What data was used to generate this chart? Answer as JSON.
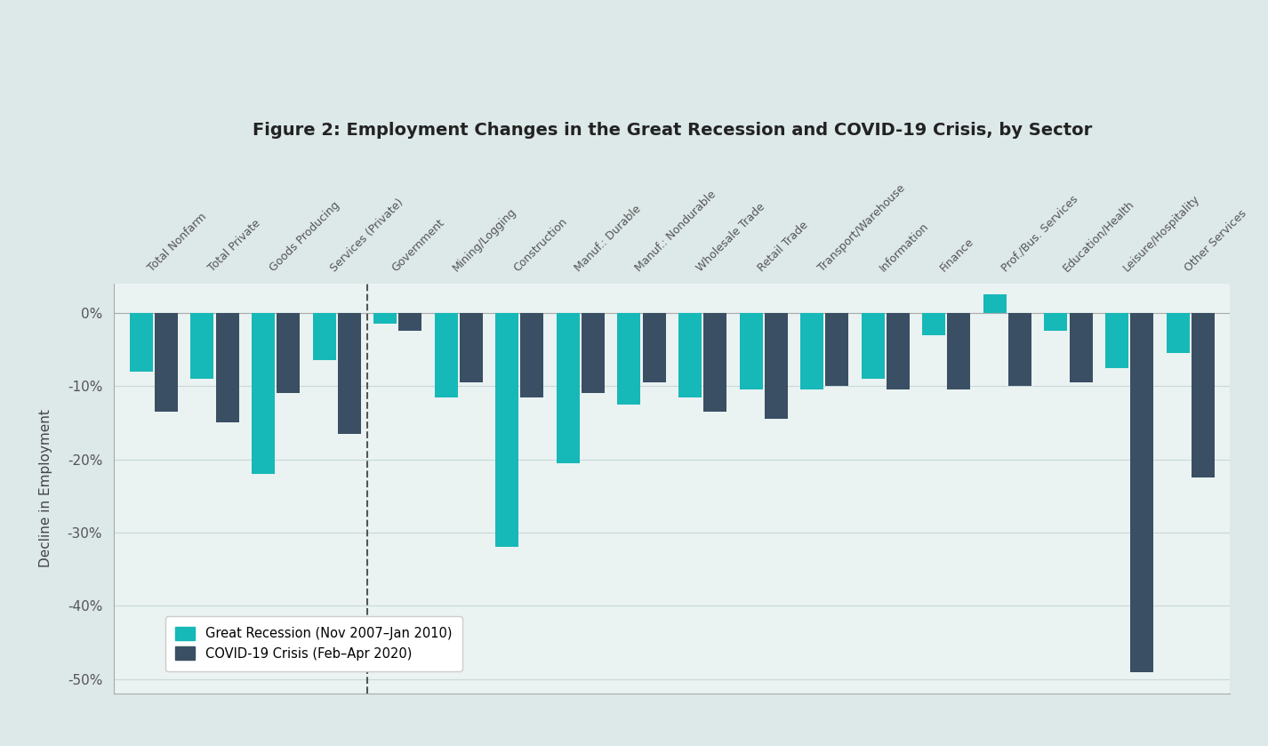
{
  "title": "Figure 2: Employment Changes in the Great Recession and COVID-19 Crisis, by Sector",
  "ylabel": "Decline in Employment",
  "fig_bg_color": "#dde8e8",
  "plot_bg_color": "#eaf2f2",
  "recession_color": "#17b8b8",
  "covid_color": "#3a4f63",
  "categories": [
    "Total Nonfarm",
    "Total Private",
    "Goods Producing",
    "Services (Private)",
    "Government",
    "Mining/Logging",
    "Construction",
    "Manuf.: Durable",
    "Manuf.: Nondurable",
    "Wholesale Trade",
    "Retail Trade",
    "Transport/Warehouse",
    "Information",
    "Finance",
    "Prof./Bus. Services",
    "Education/Health",
    "Leisure/Hospitality",
    "Other Services"
  ],
  "recession_values": [
    -8.0,
    -9.0,
    -22.0,
    -6.5,
    -1.5,
    -11.5,
    -32.0,
    -20.5,
    -12.5,
    -11.5,
    -10.5,
    -10.5,
    -9.0,
    -3.0,
    2.5,
    -2.5,
    -7.5,
    -5.5
  ],
  "covid_values": [
    -13.5,
    -15.0,
    -11.0,
    -16.5,
    -2.5,
    -9.5,
    -11.5,
    -11.0,
    -9.5,
    -13.5,
    -14.5,
    -10.0,
    -10.5,
    -10.5,
    -10.0,
    -9.5,
    -49.0,
    -22.5
  ],
  "ylim": [
    -52,
    4
  ],
  "yticks": [
    0,
    -10,
    -20,
    -30,
    -40,
    -50
  ],
  "ytick_labels": [
    "0%",
    "-10%",
    "-20%",
    "-30%",
    "-40%",
    "-50%"
  ],
  "legend_recession": "Great Recession (Nov 2007–Jan 2010)",
  "legend_covid": "COVID-19 Crisis (Feb–Apr 2020)"
}
